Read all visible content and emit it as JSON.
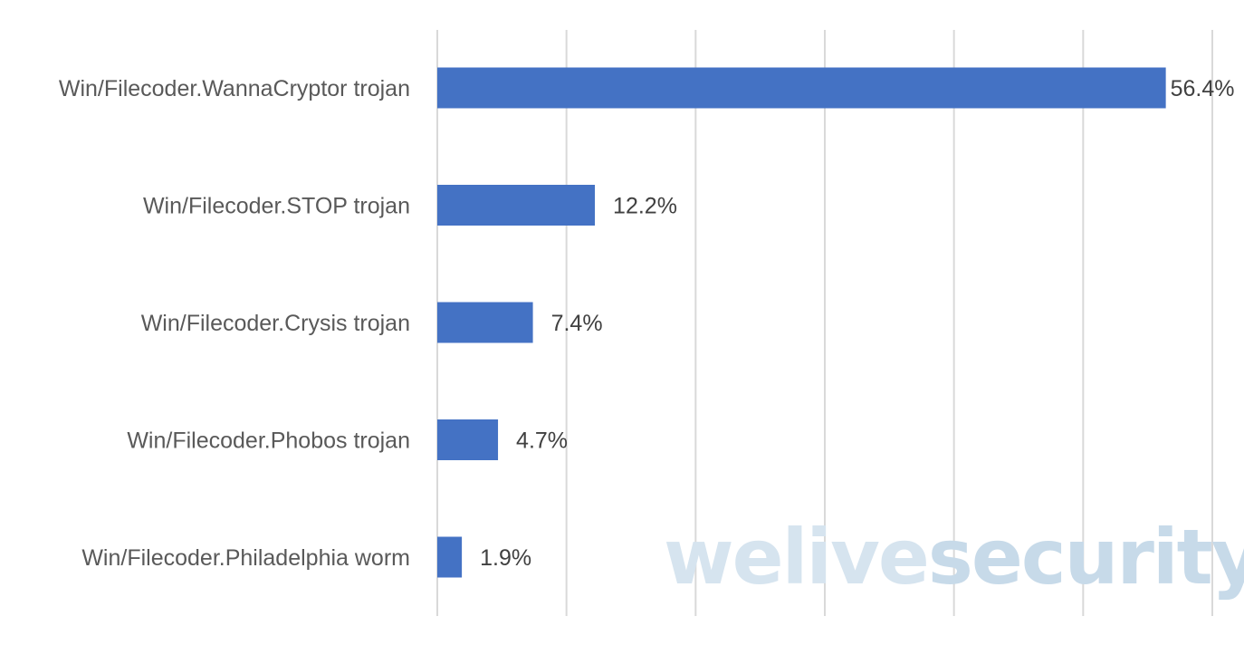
{
  "chart_data": {
    "type": "bar",
    "orientation": "horizontal",
    "categories": [
      "Win/Filecoder.WannaCryptor trojan",
      "Win/Filecoder.STOP trojan",
      "Win/Filecoder.Crysis trojan",
      "Win/Filecoder.Phobos trojan",
      "Win/Filecoder.Philadelphia worm"
    ],
    "values": [
      56.4,
      12.2,
      7.4,
      4.7,
      1.9
    ],
    "data_labels": [
      "56.4%",
      "12.2%",
      "7.4%",
      "4.7%",
      "1.9%"
    ],
    "xlim": [
      0,
      60
    ],
    "grid": true,
    "gridline_step": 10,
    "bar_color": "#4472C4",
    "grid_color": "#D9D9D9",
    "title": "",
    "xlabel": "",
    "ylabel": ""
  },
  "watermark": {
    "part1": "welive",
    "part2": "security",
    "color1": "#D6E4EF",
    "color2": "#C7DAE9"
  }
}
